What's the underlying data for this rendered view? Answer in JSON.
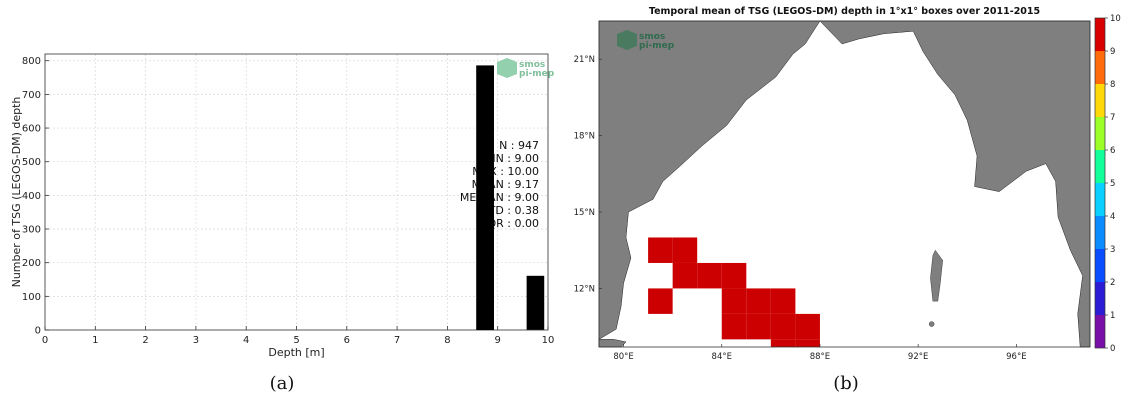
{
  "chart_data": [
    {
      "type": "bar",
      "panel_label": "(a)",
      "xlabel": "Depth [m]",
      "ylabel": "Number of TSG (LEGOS-DM) depth",
      "xlim": [
        0,
        10
      ],
      "ylim": [
        0,
        820
      ],
      "xticks": [
        0,
        1,
        2,
        3,
        4,
        5,
        6,
        7,
        8,
        9,
        10
      ],
      "yticks": [
        0,
        100,
        200,
        300,
        400,
        500,
        600,
        700,
        800
      ],
      "grid": true,
      "bar_width": 0.35,
      "bars": [
        {
          "x": 8.75,
          "value": 786
        },
        {
          "x": 9.75,
          "value": 161
        }
      ],
      "stats_lines": [
        "N : 947",
        "MIN : 9.00",
        "MAX : 10.00",
        "MEAN : 9.17",
        "MEDIAN : 9.00",
        "STD : 0.38",
        "IQR : 0.00"
      ],
      "logo": {
        "line1": "smos",
        "line2": "pi-mep"
      },
      "bar_color": "#000000"
    },
    {
      "type": "heatmap",
      "panel_label": "(b)",
      "title": "Temporal mean of TSG (LEGOS-DM) depth in 1°x1° boxes over 2011-2015",
      "lon_range": [
        79,
        99
      ],
      "lat_range": [
        9.7,
        22.5
      ],
      "xticks": [
        "80°E",
        "84°E",
        "88°E",
        "92°E",
        "96°E"
      ],
      "xtick_values": [
        80,
        84,
        88,
        92,
        96
      ],
      "yticks": [
        "12°N",
        "15°N",
        "18°N",
        "21°N"
      ],
      "ytick_values": [
        12,
        15,
        18,
        21
      ],
      "colorbar_ticks": [
        "0",
        "1",
        "2",
        "3",
        "4",
        "5",
        "6",
        "7",
        "8",
        "9",
        "10"
      ],
      "colorbar_range": [
        0,
        10
      ],
      "land_color": "#7f7f7f",
      "cell_color": "#cc0000",
      "cells": [
        {
          "lon": 81.5,
          "lat": 13.5,
          "value": 9
        },
        {
          "lon": 82.5,
          "lat": 13.5,
          "value": 9
        },
        {
          "lon": 82.5,
          "lat": 12.5,
          "value": 9
        },
        {
          "lon": 83.5,
          "lat": 12.5,
          "value": 9
        },
        {
          "lon": 84.5,
          "lat": 12.5,
          "value": 9
        },
        {
          "lon": 81.5,
          "lat": 11.5,
          "value": 9
        },
        {
          "lon": 84.5,
          "lat": 11.5,
          "value": 9
        },
        {
          "lon": 85.5,
          "lat": 11.5,
          "value": 9
        },
        {
          "lon": 86.5,
          "lat": 11.5,
          "value": 9
        },
        {
          "lon": 84.5,
          "lat": 10.5,
          "value": 9
        },
        {
          "lon": 85.5,
          "lat": 10.5,
          "value": 9
        },
        {
          "lon": 86.5,
          "lat": 10.5,
          "value": 9
        },
        {
          "lon": 87.5,
          "lat": 10.5,
          "value": 9
        },
        {
          "lon": 86.5,
          "lat": 9.5,
          "value": 9
        },
        {
          "lon": 87.5,
          "lat": 9.5,
          "value": 9
        }
      ],
      "logo": {
        "line1": "smos",
        "line2": "pi-mep"
      }
    }
  ]
}
